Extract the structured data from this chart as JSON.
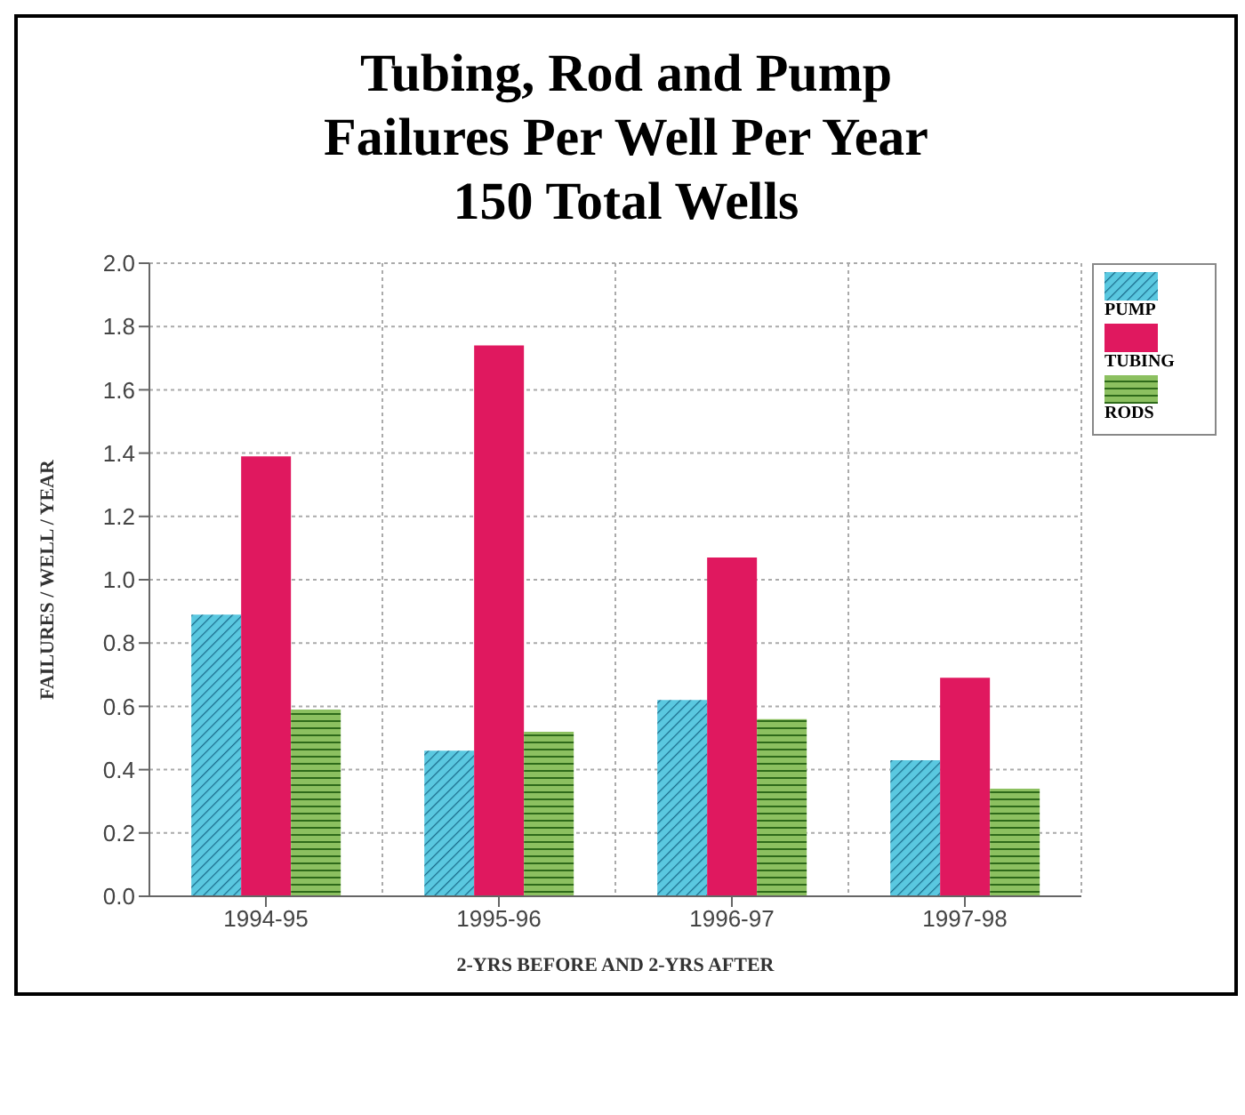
{
  "chart_data": {
    "type": "bar",
    "title": "Tubing, Rod and Pump\nFailures Per Well Per Year\n150 Total Wells",
    "xlabel": "2-YRS BEFORE AND 2-YRS AFTER",
    "ylabel": "FAILURES / WELL / YEAR",
    "categories": [
      "1994-95",
      "1995-96",
      "1996-97",
      "1997-98"
    ],
    "series": [
      {
        "name": "PUMP",
        "color": "#5ac8e0",
        "values": [
          0.89,
          0.46,
          0.62,
          0.43
        ]
      },
      {
        "name": "TUBING",
        "color": "#e0185f",
        "values": [
          1.39,
          1.74,
          1.07,
          0.69
        ]
      },
      {
        "name": "RODS",
        "color": "#8cc060",
        "values": [
          0.59,
          0.52,
          0.56,
          0.34
        ]
      }
    ],
    "ylim": [
      0,
      2
    ],
    "yticks": [
      {
        "value": 0,
        "label": "0.0"
      },
      0.2,
      0.4,
      0.6,
      0.8,
      {
        "value": 1,
        "label": "1.0"
      },
      1.2,
      1.4,
      1.6,
      1.8,
      {
        "value": 2,
        "label": "2.0"
      }
    ],
    "grid": true,
    "legend": "top right"
  }
}
